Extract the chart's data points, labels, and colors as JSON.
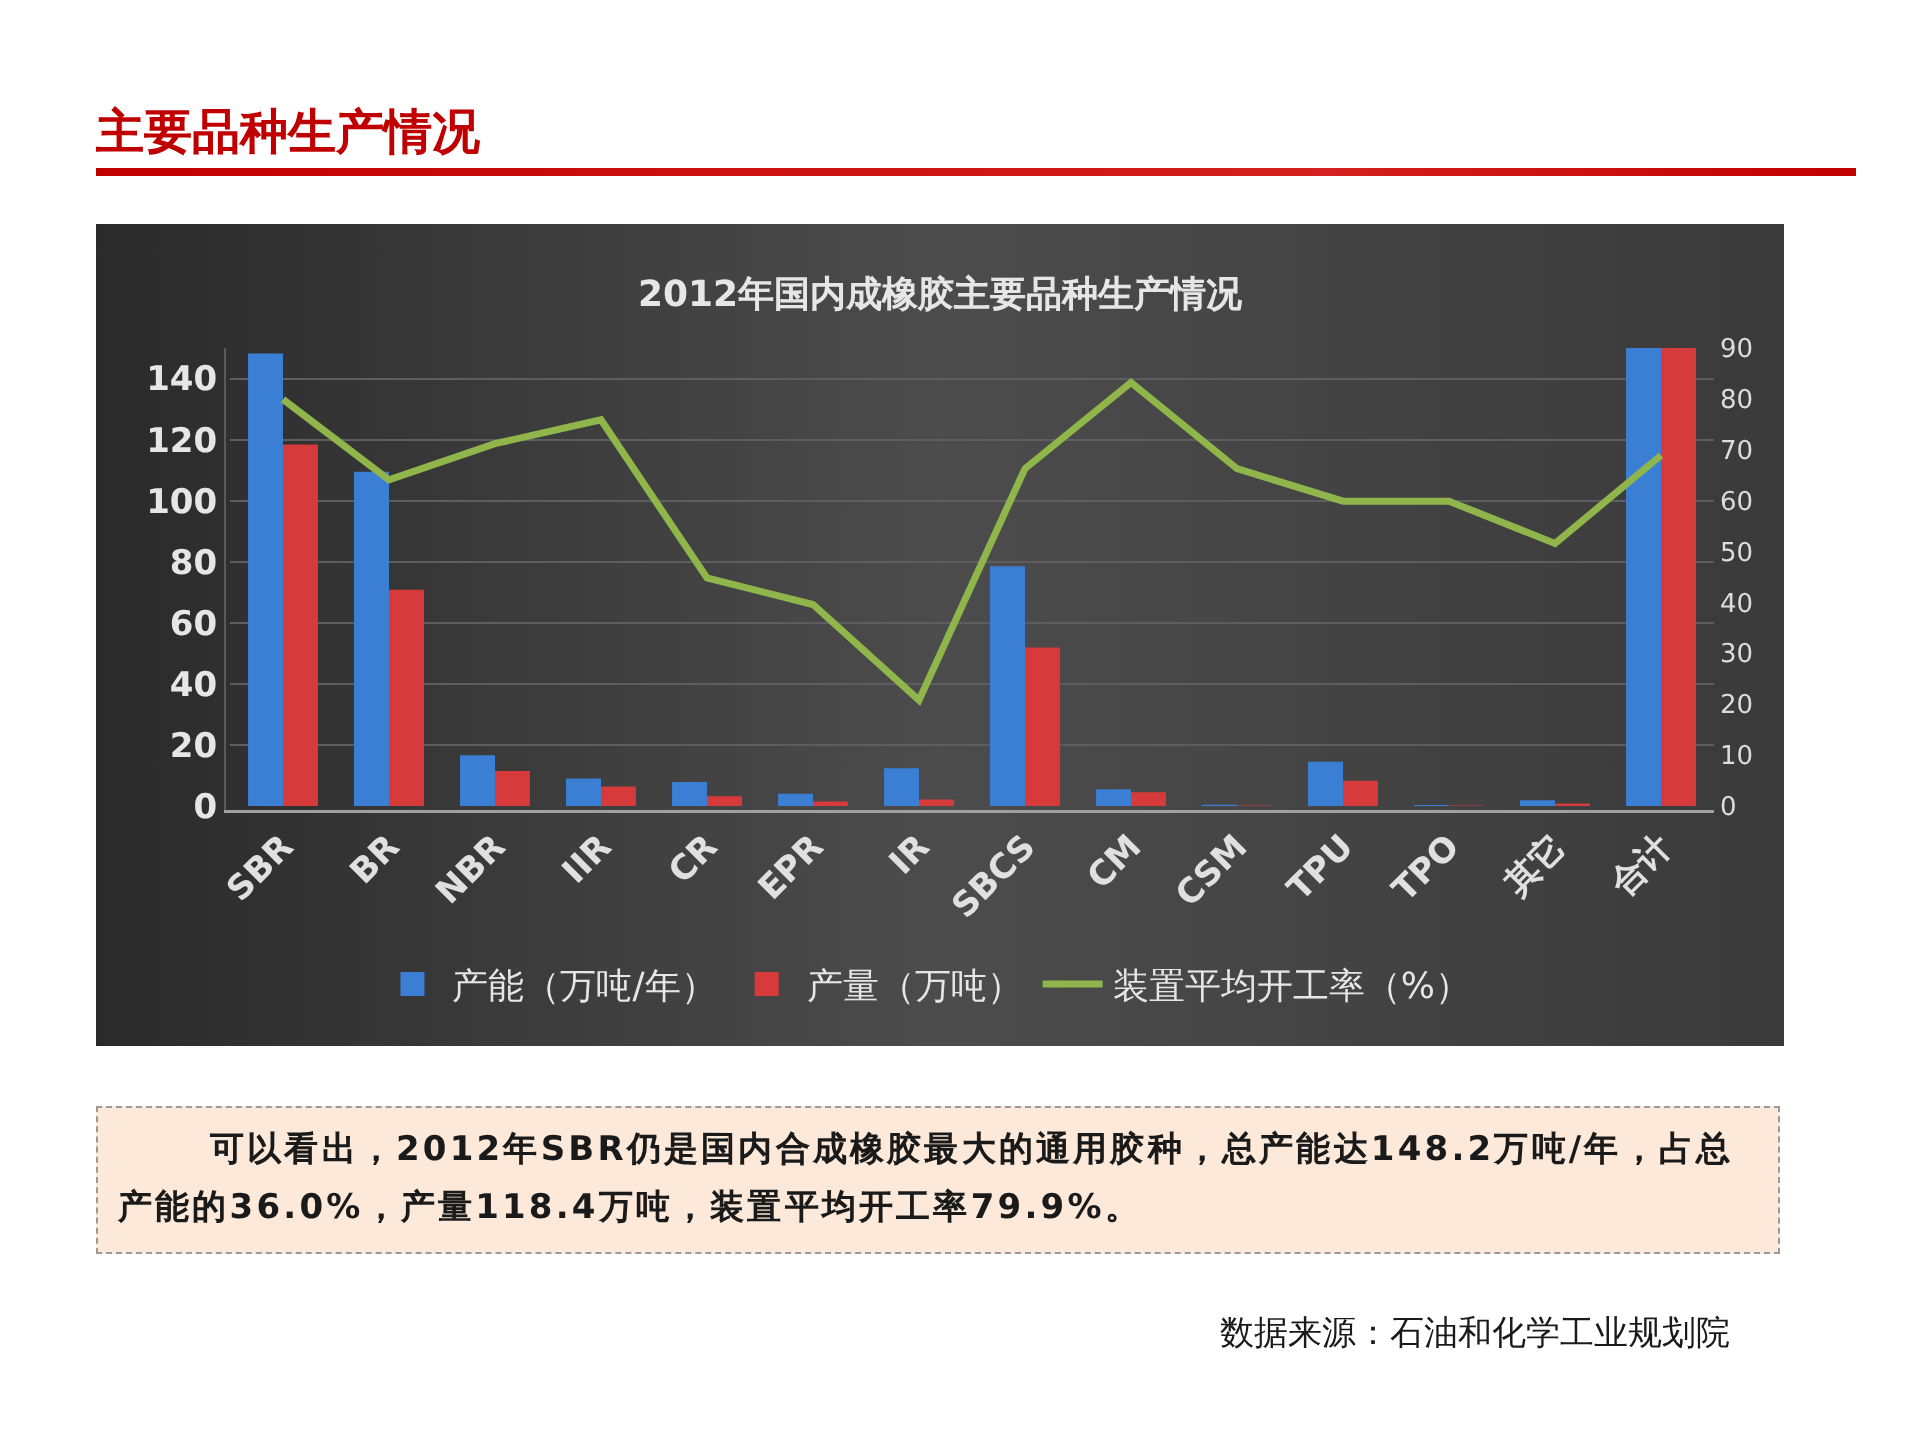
{
  "chart_data": {
    "type": "bar",
    "title": "2012年国内成橡胶主要品种生产情况",
    "categories": [
      "SBR",
      "BR",
      "NBR",
      "IIR",
      "CR",
      "EPR",
      "IR",
      "SBCS",
      "CM",
      "CSM",
      "TPU",
      "TPO",
      "其它",
      "合计"
    ],
    "series": [
      {
        "name": "产能（万吨/年）",
        "color": "#3b7fd4",
        "values": [
          148.2,
          109.5,
          16.6,
          9.0,
          7.9,
          4.0,
          12.4,
          78.5,
          5.5,
          0.4,
          14.5,
          0.3,
          1.9,
          150
        ]
      },
      {
        "name": "产量（万吨）",
        "color": "#d63a3a",
        "values": [
          118.4,
          70.8,
          11.5,
          6.4,
          3.2,
          1.5,
          2.1,
          51.9,
          4.5,
          0.2,
          8.3,
          0.2,
          0.8,
          150
        ]
      },
      {
        "name": "装置平均开工率（%）",
        "color": "#8fb54b",
        "type": "line",
        "axis": "y2",
        "values": [
          79.9,
          64.1,
          71.2,
          75.9,
          44.8,
          39.6,
          20.8,
          66.3,
          83.2,
          66.3,
          59.9,
          59.9,
          51.6,
          68.9
        ]
      }
    ],
    "ylim": [
      0,
      150
    ],
    "yticks": [
      0,
      20,
      40,
      60,
      80,
      100,
      120,
      140
    ],
    "y2lim": [
      0,
      90
    ],
    "y2ticks": [
      0,
      10,
      20,
      30,
      40,
      50,
      60,
      70,
      80,
      90
    ],
    "grid": "y",
    "legend": "bottom",
    "annotations": [
      "主要品种生产情况",
      "可以看出，2012年SBR仍是国内合成橡胶最大的通用胶种，总产能达148.2万吨/年，占总产能的36.0%，产量118.4万吨，装置平均开工率79.9%。",
      "数据来源：石油和化学工业规划院"
    ]
  }
}
